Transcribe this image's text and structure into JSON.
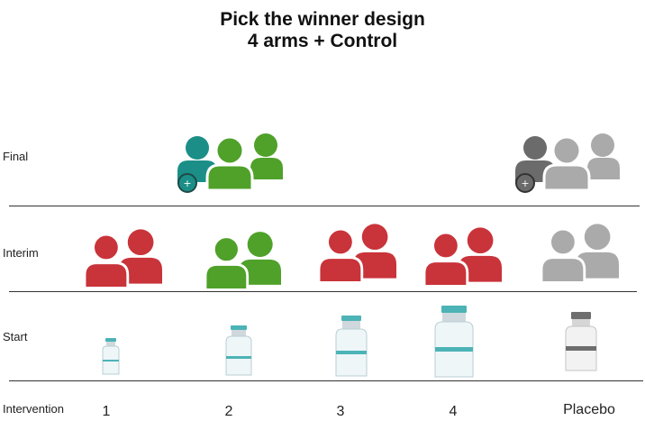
{
  "title": {
    "line1": "Pick the winner design",
    "line2": "4 arms +  Control"
  },
  "rows": {
    "final": "Final",
    "interim": "Interim",
    "start": "Start",
    "intervention": "Intervention"
  },
  "arms": [
    "1",
    "2",
    "3",
    "4",
    "Placebo"
  ],
  "colors": {
    "green": "#4fa12a",
    "teal": "#1b8f87",
    "red": "#c9333a",
    "gray": "#aaaaaa",
    "dark_gray": "#6b6b6b",
    "vial_cap_teal": "#4cb3b6",
    "vial_cap_gray": "#6e6e6e"
  },
  "icons": {
    "people": "people-group-icon",
    "vial": "vial-icon",
    "plus": "plus-badge-icon"
  }
}
